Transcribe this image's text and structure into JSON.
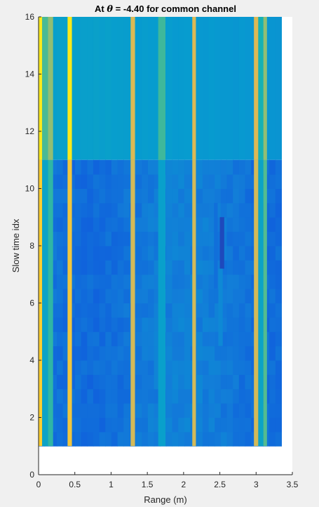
{
  "chart_data": {
    "type": "heatmap",
    "title_prefix": "At ",
    "title_symbol": "θ",
    "title_suffix": " = -4.40 for common channel",
    "xlabel": "Range (m)",
    "ylabel": "Slow time idx",
    "xlim": [
      0,
      3.5
    ],
    "ylim": [
      0,
      16
    ],
    "xticks": [
      0,
      0.5,
      1,
      1.5,
      2,
      2.5,
      3,
      3.5
    ],
    "xtick_labels": [
      "0",
      "0.5",
      "1",
      "1.5",
      "2",
      "2.5",
      "3",
      "3.5"
    ],
    "yticks": [
      0,
      2,
      4,
      6,
      8,
      10,
      12,
      14,
      16
    ],
    "ytick_labels": [
      "0",
      "2",
      "4",
      "6",
      "8",
      "10",
      "12",
      "14",
      "16"
    ],
    "grid": false,
    "colormap": "parula",
    "x_range": [
      0,
      3.35
    ],
    "y_range": [
      1,
      16
    ],
    "slow_time_split": 11,
    "range_bins": 40,
    "colors": {
      "bg": "#f0f0f0",
      "axes_bg": "#ffffff",
      "axis": "#262626"
    },
    "columns": [
      {
        "x": [
          0.0,
          0.05
        ],
        "level": 0.95,
        "upper_level": 0.98
      },
      {
        "x": [
          0.05,
          0.13
        ],
        "level": 0.42,
        "upper_level": 0.6
      },
      {
        "x": [
          0.13,
          0.2
        ],
        "level": 0.55,
        "upper_level": 0.72
      },
      {
        "x": [
          0.4,
          0.46
        ],
        "level": 0.92,
        "upper_level": 0.98
      },
      {
        "x": [
          1.27,
          1.33
        ],
        "level": 0.85,
        "upper_level": 0.87
      },
      {
        "x": [
          1.65,
          1.75
        ],
        "level": 0.4,
        "upper_level": 0.58
      },
      {
        "x": [
          2.12,
          2.17
        ],
        "level": 0.85,
        "upper_level": 0.87
      },
      {
        "x": [
          2.97,
          3.03
        ],
        "level": 0.85,
        "upper_level": 0.87
      },
      {
        "x": [
          3.03,
          3.1
        ],
        "level": 0.42,
        "upper_level": 0.5
      },
      {
        "x": [
          3.1,
          3.15
        ],
        "level": 0.62,
        "upper_level": 0.72
      }
    ],
    "hotspots": [
      {
        "x": [
          2.42,
          2.47
        ],
        "y": [
          6.5,
          9.5
        ],
        "level": 0.2
      },
      {
        "x": [
          2.5,
          2.56
        ],
        "y": [
          7.2,
          9.0
        ],
        "level": 0.08
      },
      {
        "x": [
          2.48,
          2.54
        ],
        "y": [
          4.5,
          7.2
        ],
        "level": 0.3
      }
    ]
  }
}
